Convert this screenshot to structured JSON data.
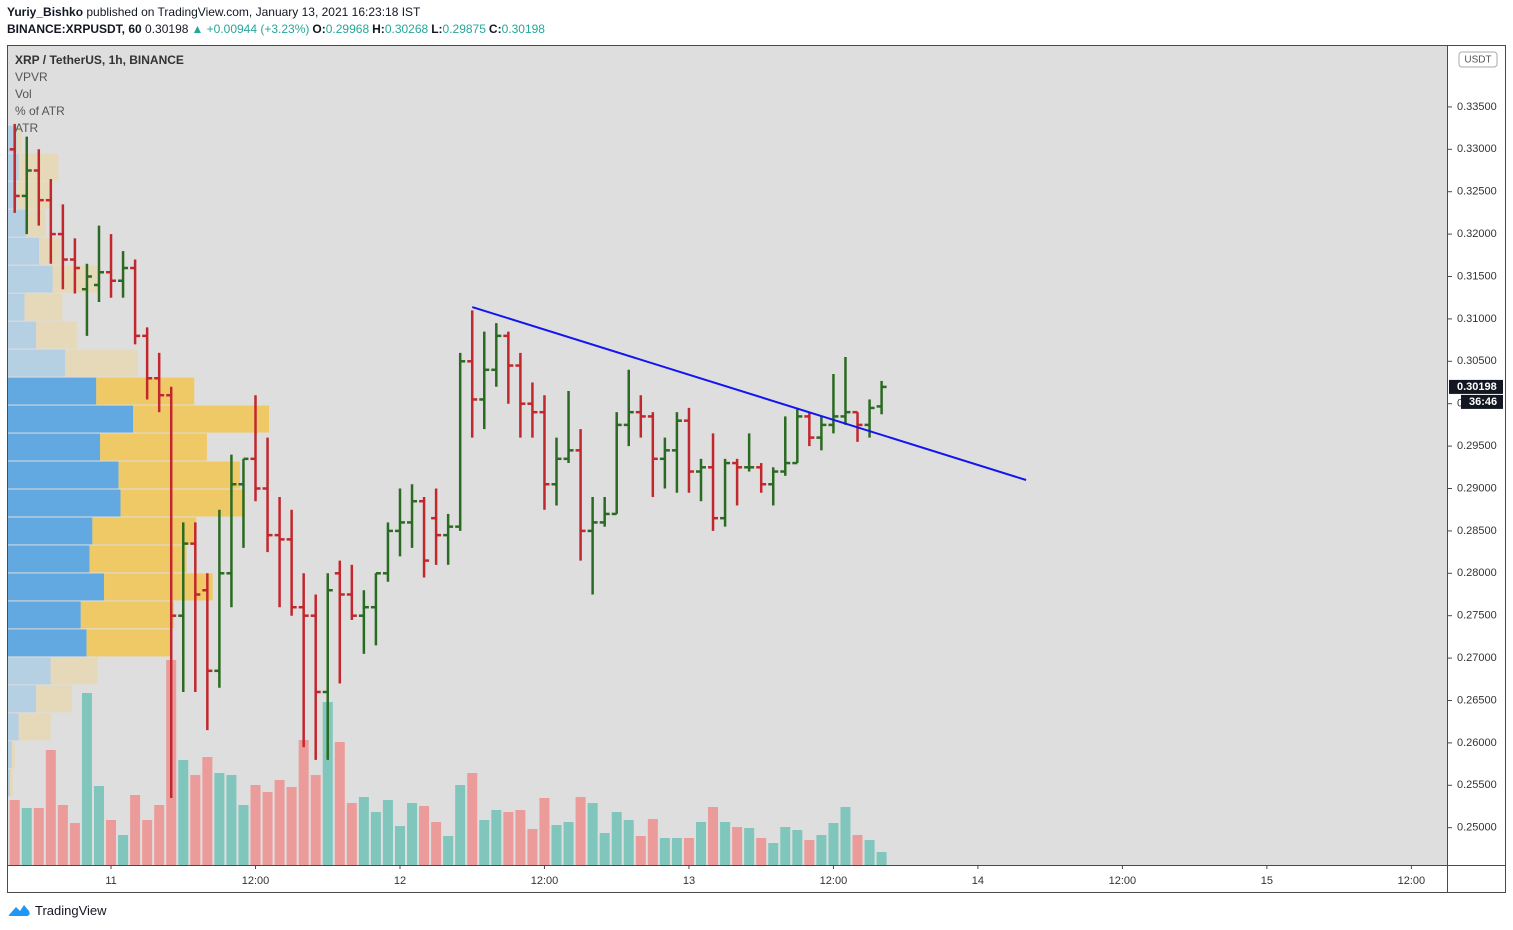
{
  "header": {
    "author": "Yuriy_Bishko",
    "published": "published on TradingView.com, January 13, 2021 16:23:18 IST",
    "symbol": "BINANCE:XRPUSDT, 60",
    "change": "▲ +0.00944 (+3.23%)",
    "o": "O:",
    "h": "H:",
    "l": "L:",
    "c": "C:"
  },
  "chart_data": {
    "type": "ohlc",
    "title": "XRP / TetherUS, 1h, BINANCE",
    "indicators": [
      "VPVR",
      "Vol",
      "% of ATR",
      "ATR"
    ],
    "x": [
      -8,
      -7,
      -6,
      -5,
      -4,
      -3,
      -2,
      -1,
      0,
      1,
      2,
      3,
      4,
      5,
      6,
      7,
      8,
      9,
      10,
      11,
      12,
      13,
      14,
      15,
      16,
      17,
      18,
      19,
      20,
      21,
      22,
      23,
      24,
      25,
      26,
      27,
      28,
      29,
      30,
      31,
      32,
      33,
      34,
      35,
      36,
      37,
      38,
      39,
      40,
      41,
      42,
      43,
      44,
      45,
      46,
      47,
      48,
      49,
      50,
      51,
      52,
      53,
      54,
      55,
      56,
      57,
      58,
      59,
      60,
      61,
      62,
      63,
      64
    ],
    "open": [
      0.33,
      0.3245,
      0.3275,
      0.324,
      0.32,
      0.317,
      0.3135,
      0.314,
      0.3155,
      0.3145,
      0.316,
      0.308,
      0.303,
      0.301,
      0.275,
      0.2835,
      0.278,
      0.2685,
      0.28,
      0.2905,
      0.2935,
      0.29,
      0.2845,
      0.284,
      0.276,
      0.275,
      0.266,
      0.28,
      0.2775,
      0.275,
      0.276,
      0.28,
      0.285,
      0.286,
      0.2885,
      0.2865,
      0.2845,
      0.2855,
      0.305,
      0.3005,
      0.304,
      0.308,
      0.3045,
      0.3,
      0.299,
      0.2905,
      0.2935,
      0.2945,
      0.285,
      0.286,
      0.287,
      0.2975,
      0.299,
      0.2985,
      0.2935,
      0.2945,
      0.298,
      0.292,
      0.2925,
      0.2865,
      0.293,
      0.2925,
      0.2925,
      0.2905,
      0.292,
      0.293,
      0.2985,
      0.296,
      0.2975,
      0.2985,
      0.299,
      0.2975,
      0.29968
    ],
    "high": [
      0.333,
      0.3315,
      0.33,
      0.3265,
      0.3235,
      0.3195,
      0.3165,
      0.321,
      0.32,
      0.318,
      0.317,
      0.309,
      0.306,
      0.302,
      0.286,
      0.286,
      0.28,
      0.2875,
      0.294,
      0.2935,
      0.301,
      0.296,
      0.289,
      0.2875,
      0.28,
      0.2775,
      0.28,
      0.2815,
      0.281,
      0.278,
      0.28,
      0.286,
      0.29,
      0.2905,
      0.289,
      0.29,
      0.287,
      0.306,
      0.311,
      0.3085,
      0.3095,
      0.3085,
      0.306,
      0.3025,
      0.301,
      0.296,
      0.3015,
      0.297,
      0.289,
      0.289,
      0.299,
      0.304,
      0.301,
      0.299,
      0.296,
      0.299,
      0.2995,
      0.2935,
      0.2965,
      0.2935,
      0.2935,
      0.2965,
      0.293,
      0.2925,
      0.2985,
      0.2995,
      0.299,
      0.2985,
      0.3035,
      0.3055,
      0.299,
      0.3005,
      0.30268
    ],
    "low": [
      0.3225,
      0.32,
      0.321,
      0.3165,
      0.3135,
      0.313,
      0.308,
      0.312,
      0.3125,
      0.3125,
      0.307,
      0.3005,
      0.299,
      0.2535,
      0.266,
      0.266,
      0.2615,
      0.2665,
      0.276,
      0.283,
      0.2885,
      0.2825,
      0.276,
      0.275,
      0.2595,
      0.258,
      0.258,
      0.267,
      0.2745,
      0.2705,
      0.2715,
      0.279,
      0.282,
      0.283,
      0.2795,
      0.281,
      0.281,
      0.285,
      0.296,
      0.297,
      0.302,
      0.3,
      0.296,
      0.296,
      0.2875,
      0.288,
      0.293,
      0.2815,
      0.2775,
      0.2855,
      0.287,
      0.295,
      0.296,
      0.289,
      0.29,
      0.2895,
      0.2895,
      0.2885,
      0.285,
      0.2855,
      0.288,
      0.292,
      0.2895,
      0.288,
      0.2915,
      0.293,
      0.295,
      0.2945,
      0.2965,
      0.2975,
      0.2955,
      0.296,
      0.29875
    ],
    "close": [
      0.3245,
      0.3275,
      0.324,
      0.32,
      0.317,
      0.316,
      0.315,
      0.3155,
      0.3145,
      0.316,
      0.308,
      0.303,
      0.301,
      0.275,
      0.2835,
      0.2775,
      0.2685,
      0.28,
      0.2905,
      0.2935,
      0.29,
      0.2845,
      0.284,
      0.276,
      0.275,
      0.266,
      0.278,
      0.2775,
      0.275,
      0.276,
      0.28,
      0.285,
      0.286,
      0.2885,
      0.2815,
      0.2845,
      0.2855,
      0.305,
      0.3005,
      0.304,
      0.308,
      0.3045,
      0.3,
      0.299,
      0.2905,
      0.2935,
      0.2945,
      0.285,
      0.286,
      0.287,
      0.2975,
      0.299,
      0.2985,
      0.2935,
      0.2945,
      0.298,
      0.292,
      0.2925,
      0.2865,
      0.293,
      0.2925,
      0.2925,
      0.2905,
      0.292,
      0.293,
      0.2985,
      0.296,
      0.2975,
      0.2985,
      0.299,
      0.2975,
      0.2995,
      0.30198
    ],
    "volume": [
      65,
      57,
      57,
      115,
      60,
      42,
      172,
      79,
      45,
      30,
      70,
      45,
      60,
      205,
      105,
      90,
      108,
      92,
      90,
      60,
      80,
      73,
      85,
      78,
      125,
      90,
      163,
      123,
      62,
      68,
      53,
      65,
      39,
      62,
      59,
      43,
      29,
      80,
      92,
      45,
      55,
      53,
      55,
      36,
      67,
      40,
      43,
      68,
      62,
      32,
      53,
      45,
      29,
      46,
      27,
      27,
      27,
      43,
      58,
      43,
      38,
      37,
      27,
      22,
      38,
      35,
      25,
      30,
      42,
      58,
      30,
      25,
      13
    ],
    "up_color": "#2b6a22",
    "down_color": "#c1272d",
    "volume_up_color": "#80c6bd",
    "volume_down_color": "#eb9c9a",
    "xlim": [
      -8.64,
      110.96
    ],
    "xticks": [
      {
        "value": 0,
        "label": "11"
      },
      {
        "value": 12,
        "label": "12:00"
      },
      {
        "value": 24,
        "label": "12"
      },
      {
        "value": 36,
        "label": "12:00"
      },
      {
        "value": 48,
        "label": "13"
      },
      {
        "value": 60,
        "label": "12:00"
      },
      {
        "value": 72,
        "label": "14"
      },
      {
        "value": 84,
        "label": "12:00"
      },
      {
        "value": 96,
        "label": "15"
      },
      {
        "value": 108,
        "label": "12:00"
      }
    ],
    "ylim": [
      0.2456,
      0.3423
    ],
    "yticks": [
      {
        "value": 0.25,
        "label": "0.25000"
      },
      {
        "value": 0.255,
        "label": "0.25500"
      },
      {
        "value": 0.26,
        "label": "0.26000"
      },
      {
        "value": 0.265,
        "label": "0.26500"
      },
      {
        "value": 0.27,
        "label": "0.27000"
      },
      {
        "value": 0.275,
        "label": "0.27500"
      },
      {
        "value": 0.28,
        "label": "0.28000"
      },
      {
        "value": 0.285,
        "label": "0.28500"
      },
      {
        "value": 0.29,
        "label": "0.29000"
      },
      {
        "value": 0.295,
        "label": "0.29500"
      },
      {
        "value": 0.3,
        "label": "0.30000"
      },
      {
        "value": 0.305,
        "label": "0.30500"
      },
      {
        "value": 0.31,
        "label": "0.31000"
      },
      {
        "value": 0.315,
        "label": "0.31500"
      },
      {
        "value": 0.32,
        "label": "0.32000"
      },
      {
        "value": 0.325,
        "label": "0.32500"
      },
      {
        "value": 0.33,
        "label": "0.33000"
      },
      {
        "value": 0.335,
        "label": "0.33500"
      }
    ],
    "axis_unit": "USDT",
    "countdown": "36:46",
    "trendline": {
      "x": [
        30,
        76
      ],
      "y": [
        0.3114,
        0.291
      ],
      "color": "#1414f0"
    },
    "volume_profile": {
      "top": 0.3329,
      "step": 0.0033,
      "up": [
        10,
        12,
        10,
        20,
        33,
        47,
        18,
        30,
        60,
        92,
        130,
        96,
        115,
        117,
        88,
        85,
        100,
        76,
        82,
        45,
        30,
        12,
        5,
        3
      ],
      "down": [
        5,
        41,
        35,
        20,
        22,
        48,
        39,
        42,
        75,
        101,
        140,
        110,
        125,
        128,
        107,
        100,
        112,
        96,
        88,
        48,
        37,
        33,
        3,
        3
      ],
      "value_area": [
        0.3032,
        0.2702
      ],
      "up_color": "#5aa5df",
      "down_color": "#f2c65a",
      "up_color_outside": "#b3cfe3",
      "down_color_outside": "#e7d8b5"
    }
  },
  "footer": {
    "brand": "TradingView"
  }
}
